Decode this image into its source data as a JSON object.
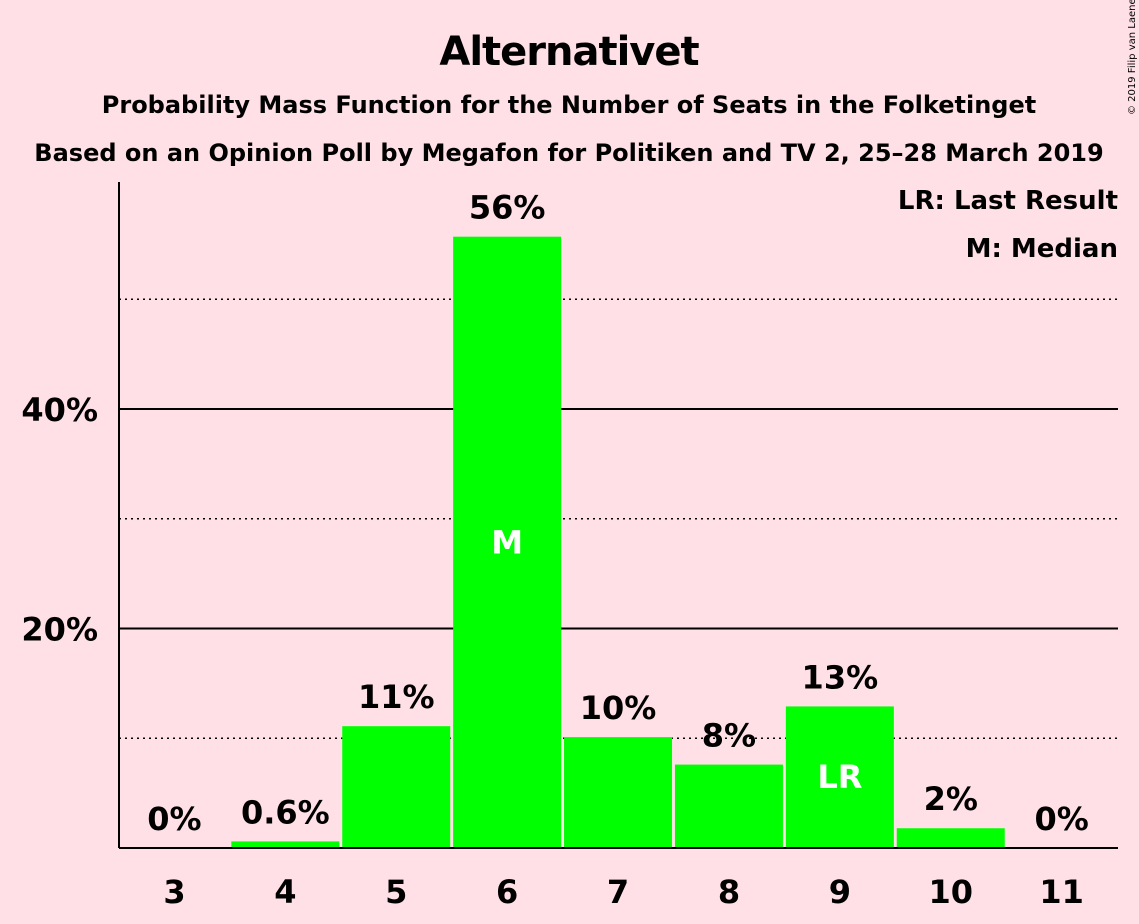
{
  "title": "Alternativet",
  "subtitle1": "Probability Mass Function for the Number of Seats in the Folketinget",
  "subtitle2": "Based on an Opinion Poll by Megafon for Politiken and TV 2, 25–28 March 2019",
  "legend": {
    "lr": "LR: Last Result",
    "m": "M: Median"
  },
  "copyright": "© 2019 Filip van Laenen",
  "colors": {
    "background": "#FFE0E6",
    "bar": "#00FF00",
    "text": "#1a0a0a",
    "inbar_text": "#FFFFFF"
  },
  "chart_data": {
    "type": "bar",
    "categories": [
      "3",
      "4",
      "5",
      "6",
      "7",
      "8",
      "9",
      "10",
      "11"
    ],
    "values": [
      0,
      0.6,
      11,
      56,
      10,
      8,
      13,
      2,
      0
    ],
    "plot_values": [
      0,
      0.6,
      11.1,
      55.7,
      10.1,
      7.6,
      12.9,
      1.8,
      0
    ],
    "value_labels": [
      "0%",
      "0.6%",
      "11%",
      "56%",
      "10%",
      "8%",
      "13%",
      "2%",
      "0%"
    ],
    "bar_annotations": [
      {
        "category": "6",
        "text": "M"
      },
      {
        "category": "9",
        "text": "LR"
      }
    ],
    "ylim": [
      0,
      60
    ],
    "y_major_ticks": [
      20,
      40
    ],
    "y_major_tick_labels": [
      "20%",
      "40%"
    ],
    "y_minor_gridlines": [
      10,
      30,
      50
    ],
    "grid": true,
    "legend_position": "top-right",
    "xlabel": "",
    "ylabel": ""
  }
}
